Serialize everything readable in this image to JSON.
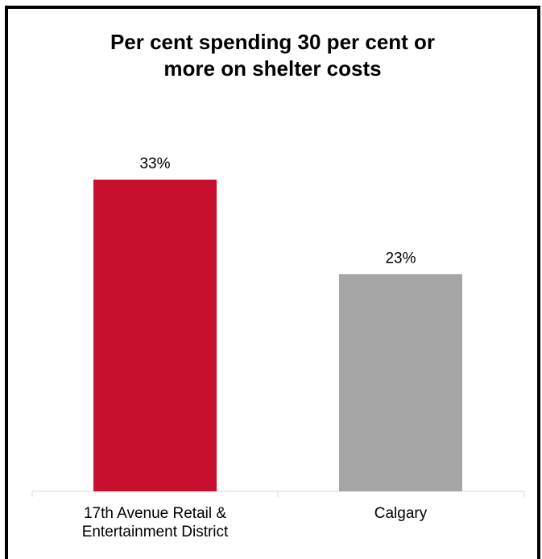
{
  "chart_data": {
    "type": "bar",
    "title": "Per cent spending 30 per cent or\nmore on shelter costs",
    "categories": [
      "17th Avenue Retail &\nEntertainment District",
      "Calgary"
    ],
    "values": [
      33,
      23
    ],
    "data_labels": [
      "33%",
      "23%"
    ],
    "colors": [
      "#c8102e",
      "#a6a6a6"
    ],
    "ylim": [
      0,
      40
    ],
    "grid": false,
    "legend": "none"
  }
}
